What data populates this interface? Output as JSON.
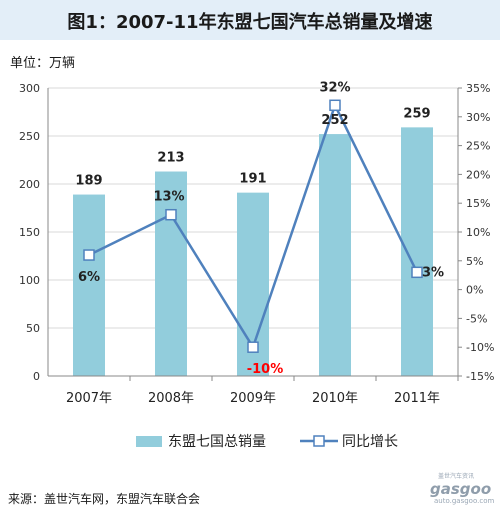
{
  "chart_data": {
    "type": "bar",
    "title": "图1：2007-11年东盟七国汽车总销量及增速",
    "unit_label": "单位：万辆",
    "source": "来源：盖世汽车网，东盟汽车联合会",
    "categories": [
      "2007年",
      "2008年",
      "2009年",
      "2010年",
      "2011年"
    ],
    "series": [
      {
        "name": "东盟七国总销量",
        "type": "bar",
        "axis": "left",
        "color": "#92cddc",
        "values": [
          189,
          213,
          191,
          252,
          259
        ],
        "labels": [
          "189",
          "213",
          "191",
          "252",
          "259"
        ]
      },
      {
        "name": "同比增长",
        "type": "line",
        "axis": "right",
        "color": "#4f81bd",
        "values": [
          6,
          13,
          -10,
          32,
          3
        ],
        "labels": [
          "6%",
          "13%",
          "-10%",
          "32%",
          "3%"
        ]
      }
    ],
    "y_left": {
      "min": 0,
      "max": 300,
      "ticks": [
        "0",
        "50",
        "100",
        "150",
        "200",
        "250",
        "300"
      ]
    },
    "y_right": {
      "min": -15,
      "max": 35,
      "ticks": [
        "-15%",
        "-10%",
        "-5%",
        "0%",
        "5%",
        "10%",
        "15%",
        "20%",
        "25%",
        "30%",
        "35%"
      ]
    },
    "negative_label_color": "#ff0000",
    "grid": true,
    "legend_position": "bottom"
  },
  "watermark": {
    "chinese": "盖世汽车资讯",
    "brand": "gasgoo",
    "url": "auto.gasgoo.com"
  }
}
